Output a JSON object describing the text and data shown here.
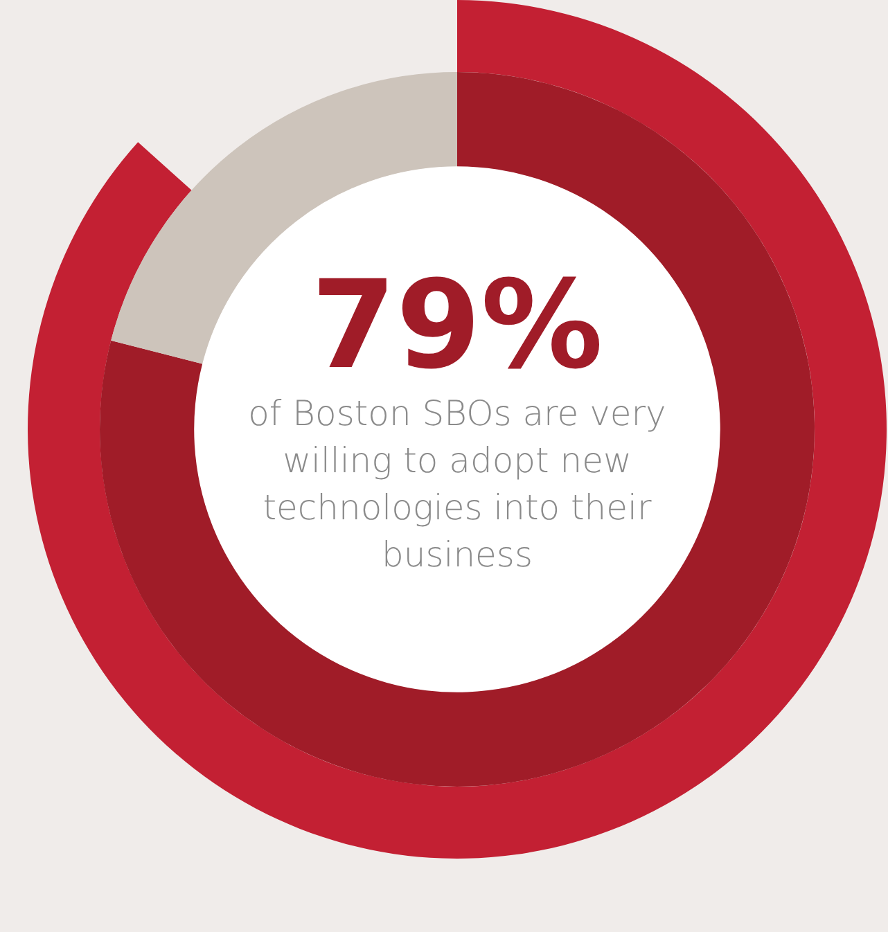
{
  "chart_data": {
    "type": "donut",
    "categories": [
      null,
      null
    ],
    "values": [
      79,
      21
    ],
    "colors": [
      "#a01c28",
      "#cdc4bb"
    ],
    "annotations": [
      "79%",
      "of Boston SBOs are very willing to adopt new technologies into their business"
    ]
  }
}
